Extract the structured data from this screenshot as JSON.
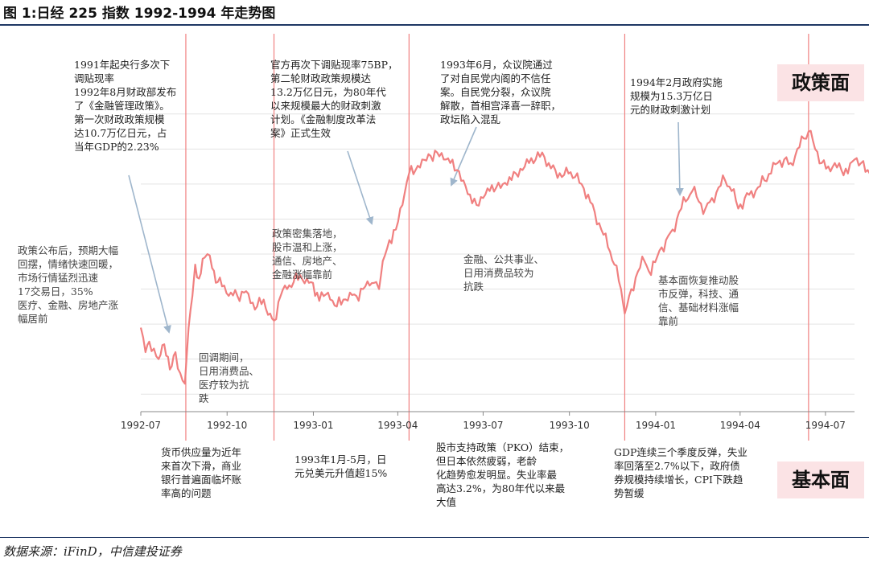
{
  "page": {
    "title": "图 1:日经 225 指数 1992-1994 年走势图",
    "source": "数据来源：iFinD，中信建投证券",
    "badge_policy": "政策面",
    "badge_fundamental": "基本面"
  },
  "colors": {
    "line": "#f08080",
    "event_line": "#f08080",
    "badge_bg": "#fbe3e5",
    "rule": "#1f3864",
    "grid": "#e3e3e3",
    "arrow": "#9fb6cc"
  },
  "annotations": {
    "policy_1991": [
      "1991年起央行多次下",
      "调贴现率",
      "1992年8月财政部发布",
      "了《金融管理政策》。",
      "第一次财政政策规模",
      "达10.7万亿日元，占",
      "当年GDP的2.23%"
    ],
    "left_recovery": [
      "政策公布后，预期大幅",
      "回摆，情绪快速回暖，",
      "市场行情猛烈迅速",
      "17交易日，35%",
      "医疗、金融、房地产涨",
      "幅居前"
    ],
    "pullback": [
      "回调期间，",
      "日用消费品、",
      "医疗较为抗",
      "跌"
    ],
    "policy_75bp": [
      "官方再次下调贴现率75BP，",
      "第二轮财政政策规模达",
      "13.2万亿日元，为80年代",
      "以来规模最大的财政刺激",
      "计划。《金融制度改革法",
      "案》正式生效"
    ],
    "policy_dense": [
      "政策密集落地，",
      "股市温和上涨，",
      "通信、房地产、",
      "金融涨幅靠前"
    ],
    "policy_199306": [
      "1993年6月，众议院通过",
      "了对自民党内阁的不信任",
      "案。自民党分裂，众议院",
      "解散，首相宫泽喜一辞职，",
      "政坛陷入混乱"
    ],
    "defensive": [
      "金融、公共事业、",
      "日用消费品较为",
      "抗跌"
    ],
    "policy_199402": [
      "1994年2月政府实施",
      "规模为15.3万亿日",
      "元的财政刺激计划"
    ],
    "fundamental_recovery": [
      "基本面恢复推动股",
      "市反弹，科技、通",
      "信、基础材料涨幅",
      "靠前"
    ],
    "fund_money": [
      "货币供应量为近年",
      "来首次下滑，商业",
      "银行普遍面临坏账",
      "率高的问题"
    ],
    "fund_yen": [
      "1993年1月-5月，日",
      "元兑美元升值超15%"
    ],
    "fund_pko": [
      "股市支持政策（PKO）结束，",
      "但日本依然疲弱，老龄",
      "化趋势愈发明显。失业率最",
      "高达3.2%，为80年代以来最",
      "大值"
    ],
    "fund_gdp": [
      "GDP连续三个季度反弹，失业",
      "率回落至2.7%以下，政府债",
      "券规模持续增长，CPI下跌趋",
      "势暂缓"
    ]
  },
  "chart_data": {
    "type": "line",
    "title": "图 1:日经 225 指数 1992-1994 年走势图",
    "xlabel": "",
    "ylabel": "",
    "x_ticks": [
      "1992-07",
      "1992-10",
      "1993-01",
      "1993-04",
      "1993-07",
      "1993-10",
      "1994-01",
      "1994-04",
      "1994-07"
    ],
    "x_range": [
      "1992-07",
      "1994-08"
    ],
    "y_axis_labels_shown": false,
    "grid": "horizontal",
    "series": [
      {
        "values_description": "Nikkei 225 index level (relative, y-axis values not printed)",
        "points": [
          [
            "1992-07-01",
            15900
          ],
          [
            "1992-07-06",
            15200
          ],
          [
            "1992-07-10",
            15500
          ],
          [
            "1992-07-15",
            15300
          ],
          [
            "1992-07-20",
            15000
          ],
          [
            "1992-07-24",
            15400
          ],
          [
            "1992-07-28",
            15100
          ],
          [
            "1992-08-03",
            14800
          ],
          [
            "1992-08-07",
            15200
          ],
          [
            "1992-08-12",
            14600
          ],
          [
            "1992-08-17",
            14300
          ],
          [
            "1992-08-18",
            14700
          ],
          [
            "1992-08-21",
            15900
          ],
          [
            "1992-08-25",
            16800
          ],
          [
            "1992-08-28",
            17700
          ],
          [
            "1992-09-01",
            17300
          ],
          [
            "1992-09-07",
            17900
          ],
          [
            "1992-09-10",
            18000
          ],
          [
            "1992-09-15",
            17600
          ],
          [
            "1992-09-21",
            17200
          ],
          [
            "1992-09-28",
            17100
          ],
          [
            "1992-10-05",
            16900
          ],
          [
            "1992-10-12",
            16800
          ],
          [
            "1992-10-19",
            16900
          ],
          [
            "1992-10-26",
            16600
          ],
          [
            "1992-11-02",
            16500
          ],
          [
            "1992-11-09",
            16700
          ],
          [
            "1992-11-16",
            16300
          ],
          [
            "1992-11-20",
            16100
          ],
          [
            "1992-11-27",
            16800
          ],
          [
            "1992-12-04",
            17000
          ],
          [
            "1992-12-11",
            17200
          ],
          [
            "1992-12-18",
            17400
          ],
          [
            "1992-12-25",
            17300
          ],
          [
            "1993-01-05",
            16900
          ],
          [
            "1993-01-12",
            16800
          ],
          [
            "1993-01-19",
            16700
          ],
          [
            "1993-01-26",
            16500
          ],
          [
            "1993-02-02",
            16700
          ],
          [
            "1993-02-09",
            16900
          ],
          [
            "1993-02-16",
            16800
          ],
          [
            "1993-02-23",
            17000
          ],
          [
            "1993-03-02",
            17100
          ],
          [
            "1993-03-09",
            17200
          ],
          [
            "1993-03-12",
            17000
          ],
          [
            "1993-03-16",
            17800
          ],
          [
            "1993-03-23",
            18400
          ],
          [
            "1993-03-30",
            18700
          ],
          [
            "1993-04-06",
            19400
          ],
          [
            "1993-04-13",
            20300
          ],
          [
            "1993-04-20",
            20400
          ],
          [
            "1993-04-27",
            20700
          ],
          [
            "1993-05-06",
            20800
          ],
          [
            "1993-05-13",
            20900
          ],
          [
            "1993-05-20",
            20700
          ],
          [
            "1993-05-27",
            20600
          ],
          [
            "1993-06-03",
            20400
          ],
          [
            "1993-06-10",
            20100
          ],
          [
            "1993-06-17",
            19700
          ],
          [
            "1993-06-24",
            19400
          ],
          [
            "1993-07-01",
            19600
          ],
          [
            "1993-07-08",
            19800
          ],
          [
            "1993-07-15",
            19900
          ],
          [
            "1993-07-22",
            20000
          ],
          [
            "1993-07-29",
            20200
          ],
          [
            "1993-08-05",
            20300
          ],
          [
            "1993-08-12",
            20400
          ],
          [
            "1993-08-19",
            20600
          ],
          [
            "1993-08-26",
            20700
          ],
          [
            "1993-09-02",
            20900
          ],
          [
            "1993-09-09",
            20600
          ],
          [
            "1993-09-16",
            20400
          ],
          [
            "1993-09-23",
            20200
          ],
          [
            "1993-09-30",
            20300
          ],
          [
            "1993-10-07",
            20200
          ],
          [
            "1993-10-14",
            20000
          ],
          [
            "1993-10-21",
            19700
          ],
          [
            "1993-10-28",
            19200
          ],
          [
            "1993-11-04",
            18700
          ],
          [
            "1993-11-11",
            18200
          ],
          [
            "1993-11-18",
            17700
          ],
          [
            "1993-11-25",
            17000
          ],
          [
            "1993-11-29",
            16300
          ],
          [
            "1993-12-06",
            17000
          ],
          [
            "1993-12-13",
            17500
          ],
          [
            "1993-12-20",
            17800
          ],
          [
            "1993-12-27",
            17400
          ],
          [
            "1994-01-05",
            18100
          ],
          [
            "1994-01-12",
            18400
          ],
          [
            "1994-01-19",
            18700
          ],
          [
            "1994-01-26",
            19200
          ],
          [
            "1994-02-02",
            19500
          ],
          [
            "1994-02-09",
            19800
          ],
          [
            "1994-02-16",
            19500
          ],
          [
            "1994-02-23",
            19300
          ],
          [
            "1994-03-02",
            19600
          ],
          [
            "1994-03-09",
            19900
          ],
          [
            "1994-03-16",
            20100
          ],
          [
            "1994-03-23",
            19800
          ],
          [
            "1994-03-30",
            19300
          ],
          [
            "1994-04-06",
            19600
          ],
          [
            "1994-04-13",
            19800
          ],
          [
            "1994-04-20",
            19900
          ],
          [
            "1994-04-27",
            20100
          ],
          [
            "1994-05-04",
            20300
          ],
          [
            "1994-05-11",
            20600
          ],
          [
            "1994-05-18",
            20700
          ],
          [
            "1994-05-25",
            20600
          ],
          [
            "1994-06-01",
            21000
          ],
          [
            "1994-06-08",
            21300
          ],
          [
            "1994-06-13",
            21500
          ],
          [
            "1994-06-20",
            21000
          ],
          [
            "1994-06-27",
            20600
          ],
          [
            "1994-07-04",
            20500
          ],
          [
            "1994-07-11",
            20600
          ],
          [
            "1994-07-18",
            20400
          ],
          [
            "1994-07-25",
            20300
          ],
          [
            "1994-08-01",
            20700
          ],
          [
            "1994-08-08",
            20600
          ],
          [
            "1994-08-15",
            20400
          ],
          [
            "1994-08-19",
            20500
          ]
        ]
      }
    ],
    "event_lines": [
      "1992-08-18",
      "1992-11-20",
      "1993-04-13",
      "1993-11-29",
      "1994-06-13"
    ]
  }
}
